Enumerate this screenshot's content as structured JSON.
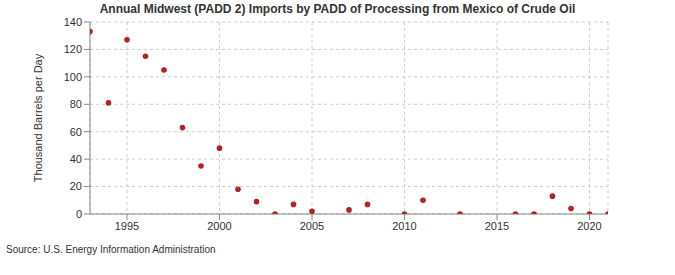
{
  "chart_data": {
    "type": "scatter",
    "title": "Annual Midwest (PADD 2) Imports by PADD of Processing from Mexico of Crude Oil",
    "ylabel": "Thousand Barrels per Day",
    "source": "Source: U.S. Energy Information Administration",
    "x": [
      1993,
      1994,
      1995,
      1996,
      1997,
      1998,
      1999,
      2000,
      2001,
      2002,
      2003,
      2004,
      2005,
      2007,
      2008,
      2010,
      2011,
      2013,
      2016,
      2017,
      2018,
      2019,
      2020,
      2021
    ],
    "values": [
      133,
      81,
      127,
      115,
      105,
      63,
      35,
      48,
      18,
      9,
      0,
      7,
      2,
      3,
      7,
      0,
      10,
      0,
      0,
      0,
      13,
      4,
      0,
      0
    ],
    "color": "#b22222",
    "marker": "circle",
    "xlim": [
      1993,
      2021
    ],
    "xticks": [
      1995,
      2000,
      2005,
      2010,
      2015,
      2020
    ],
    "ylim": [
      0,
      140
    ],
    "yticks": [
      0,
      20,
      40,
      60,
      80,
      100,
      120,
      140
    ],
    "grid": true
  }
}
